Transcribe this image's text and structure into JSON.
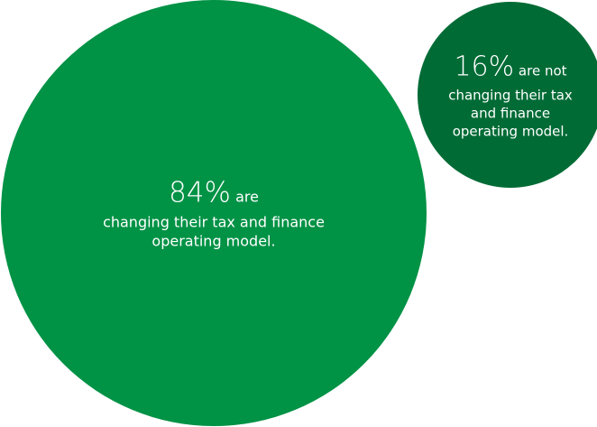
{
  "chart_data": {
    "type": "bubble",
    "title": "",
    "series": [
      {
        "value": 84,
        "value_label": "84%",
        "label_inline": "are",
        "label_rest": "changing their tax and finance operating model.",
        "color": "#009245"
      },
      {
        "value": 16,
        "value_label": "16%",
        "label_inline": "are not",
        "label_rest": "changing their tax and finance operating model.",
        "color": "#006b35"
      }
    ]
  }
}
